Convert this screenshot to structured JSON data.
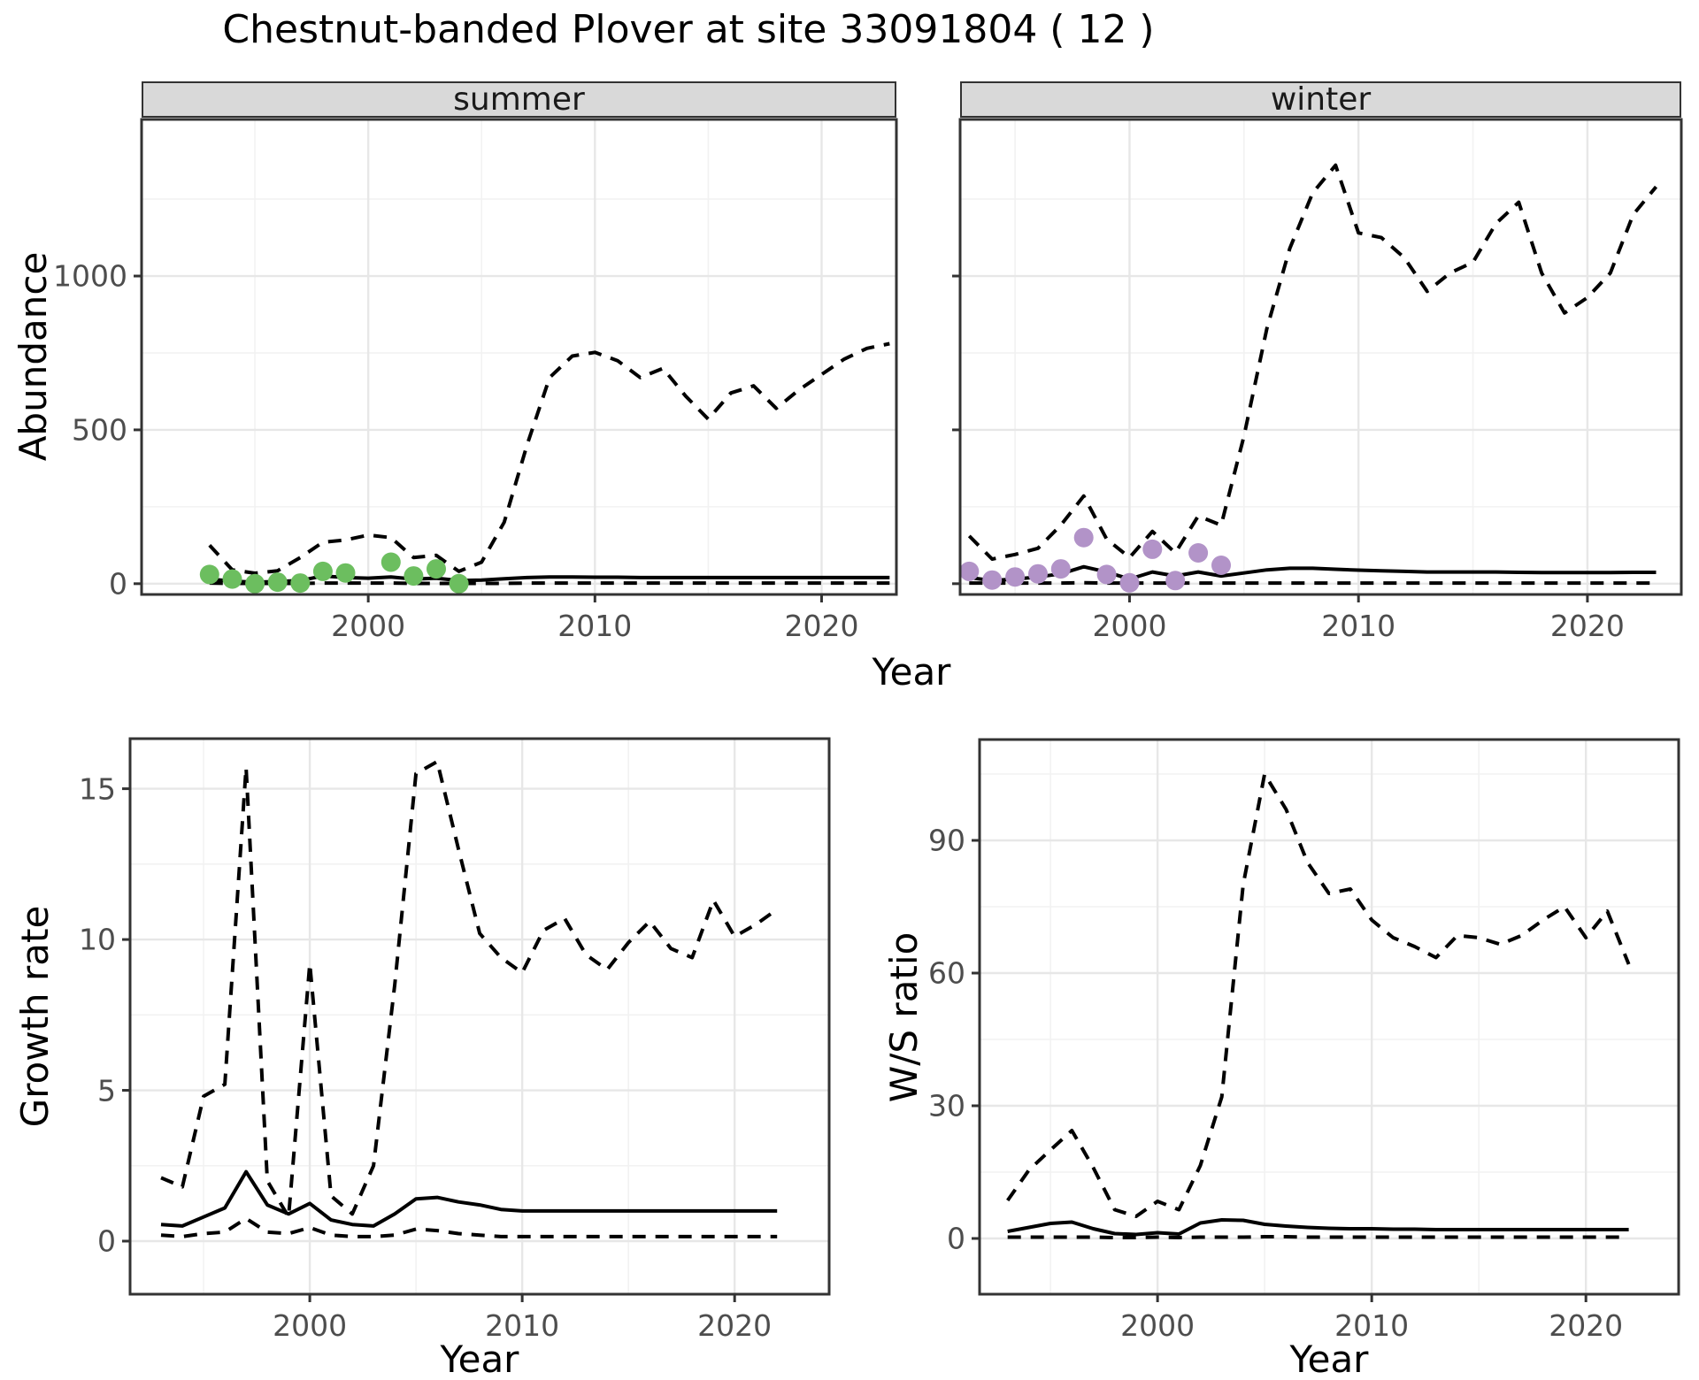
{
  "title": "Chestnut-banded Plover at site 33091804 ( 12 )",
  "top_xlabel": "Year",
  "colors": {
    "summer_point": "#6CBE5F",
    "winter_point": "#B293C8",
    "line": "#000000",
    "strip_bg": "#D9D9D9",
    "panel_border": "#333333",
    "grid_major": "#E7E7E7",
    "grid_minor": "#F2F2F2",
    "tick_label": "#4D4D4D"
  },
  "chart_data": [
    {
      "id": "abundance-summer",
      "type": "line",
      "facet_label": "summer",
      "xlabel": "Year",
      "ylabel": "Abundance",
      "x_ticks": [
        2000,
        2010,
        2020
      ],
      "x_minor": [
        1995,
        2005,
        2015
      ],
      "y_ticks": [
        0,
        500,
        1000
      ],
      "y_minor": [
        250,
        750,
        1250
      ],
      "xlim": [
        1990.0,
        2023.3
      ],
      "ylim": [
        -35,
        1509
      ],
      "grid": true,
      "legend": "none",
      "years": [
        1993,
        1994,
        1995,
        1996,
        1997,
        1998,
        1999,
        2000,
        2001,
        2002,
        2003,
        2004,
        2005,
        2006,
        2007,
        2008,
        2009,
        2010,
        2011,
        2012,
        2013,
        2014,
        2015,
        2016,
        2017,
        2018,
        2019,
        2020,
        2021,
        2022,
        2023
      ],
      "series": [
        {
          "name": "upper_ci",
          "style": "dashed",
          "values": [
            125,
            45,
            34,
            42,
            85,
            135,
            142,
            158,
            150,
            85,
            92,
            40,
            70,
            200,
            450,
            670,
            740,
            752,
            725,
            670,
            700,
            610,
            535,
            620,
            643,
            570,
            630,
            680,
            730,
            765,
            780
          ]
        },
        {
          "name": "mean",
          "style": "solid",
          "values": [
            15,
            8,
            5,
            7,
            10,
            25,
            20,
            18,
            22,
            15,
            18,
            10,
            12,
            16,
            20,
            22,
            22,
            21,
            21,
            20,
            20,
            20,
            20,
            20,
            20,
            20,
            20,
            20,
            20,
            20,
            20
          ]
        },
        {
          "name": "lower_ci",
          "style": "dashed",
          "values": [
            2,
            1,
            1,
            1,
            1,
            2,
            2,
            2,
            2,
            1,
            1,
            1,
            1,
            1,
            2,
            2,
            2,
            2,
            2,
            2,
            2,
            2,
            2,
            2,
            2,
            2,
            2,
            2,
            2,
            2,
            2
          ]
        }
      ],
      "points": {
        "name": "observed-count",
        "color_key": "summer_point",
        "years": [
          1993,
          1994,
          1995,
          1996,
          1997,
          1998,
          1999,
          2001,
          2002,
          2003,
          2004
        ],
        "values": [
          30,
          15,
          0,
          5,
          2,
          40,
          35,
          70,
          25,
          48,
          0
        ]
      }
    },
    {
      "id": "abundance-winter",
      "type": "line",
      "facet_label": "winter",
      "xlabel": "Year",
      "ylabel": "",
      "x_ticks": [
        2000,
        2010,
        2020
      ],
      "x_minor": [
        1995,
        2005,
        2015
      ],
      "y_ticks": [
        0,
        500,
        1000
      ],
      "y_minor": [
        250,
        750,
        1250
      ],
      "xlim": [
        1992.6,
        2024.1
      ],
      "ylim": [
        -35,
        1509
      ],
      "grid": true,
      "legend": "none",
      "years": [
        1993,
        1994,
        1995,
        1996,
        1997,
        1998,
        1999,
        2000,
        2001,
        2002,
        2003,
        2004,
        2005,
        2006,
        2007,
        2008,
        2009,
        2010,
        2011,
        2012,
        2013,
        2014,
        2015,
        2016,
        2017,
        2018,
        2019,
        2020,
        2021,
        2022,
        2023
      ],
      "series": [
        {
          "name": "upper_ci",
          "style": "dashed",
          "values": [
            155,
            80,
            95,
            115,
            190,
            285,
            145,
            85,
            170,
            100,
            220,
            190,
            480,
            830,
            1090,
            1270,
            1360,
            1140,
            1125,
            1060,
            950,
            1010,
            1045,
            1170,
            1240,
            1010,
            880,
            930,
            1010,
            1200,
            1290
          ]
        },
        {
          "name": "mean",
          "style": "solid",
          "values": [
            20,
            10,
            15,
            22,
            32,
            55,
            38,
            15,
            38,
            25,
            38,
            25,
            35,
            45,
            50,
            50,
            47,
            44,
            42,
            40,
            38,
            38,
            38,
            38,
            37,
            36,
            36,
            36,
            36,
            37,
            37
          ]
        },
        {
          "name": "lower_ci",
          "style": "dashed",
          "values": [
            2,
            2,
            2,
            2,
            2,
            3,
            2,
            2,
            2,
            2,
            2,
            2,
            2,
            2,
            2,
            2,
            2,
            2,
            2,
            2,
            2,
            2,
            2,
            2,
            2,
            2,
            2,
            2,
            2,
            2,
            2
          ]
        }
      ],
      "points": {
        "name": "observed-count",
        "color_key": "winter_point",
        "years": [
          1993,
          1994,
          1995,
          1996,
          1997,
          1998,
          1999,
          2000,
          2001,
          2002,
          2003,
          2004
        ],
        "values": [
          40,
          12,
          22,
          32,
          48,
          150,
          30,
          3,
          112,
          10,
          100,
          60
        ]
      }
    },
    {
      "id": "growth-rate",
      "type": "line",
      "facet_label": null,
      "xlabel": "Year",
      "ylabel": "Growth rate",
      "x_ticks": [
        2000,
        2010,
        2020
      ],
      "x_minor": [
        1995,
        2005,
        2015
      ],
      "y_ticks": [
        0,
        5,
        10,
        15
      ],
      "y_minor": [
        2.5,
        7.5,
        12.5
      ],
      "xlim": [
        1991.54,
        2024.45
      ],
      "ylim": [
        -1.76,
        16.66
      ],
      "grid": true,
      "legend": "none",
      "years": [
        1993,
        1994,
        1995,
        1996,
        1997,
        1998,
        1999,
        2000,
        2001,
        2002,
        2003,
        2004,
        2005,
        2006,
        2007,
        2008,
        2009,
        2010,
        2011,
        2012,
        2013,
        2014,
        2015,
        2016,
        2017,
        2018,
        2019,
        2020,
        2021,
        2022
      ],
      "series": [
        {
          "name": "upper_ci",
          "style": "dashed",
          "values": [
            2.1,
            1.8,
            4.8,
            5.2,
            15.7,
            2.0,
            0.8,
            9.2,
            1.5,
            0.9,
            2.5,
            8.5,
            15.5,
            15.9,
            13.0,
            10.2,
            9.4,
            8.9,
            10.3,
            10.7,
            9.5,
            9.0,
            9.9,
            10.6,
            9.7,
            9.4,
            11.3,
            10.1,
            10.5,
            11.0
          ]
        },
        {
          "name": "mean",
          "style": "solid",
          "values": [
            0.55,
            0.5,
            0.8,
            1.1,
            2.3,
            1.2,
            0.9,
            1.25,
            0.7,
            0.55,
            0.5,
            0.9,
            1.4,
            1.45,
            1.3,
            1.2,
            1.05,
            1.0,
            1.0,
            1.0,
            1.0,
            1.0,
            1.0,
            1.0,
            1.0,
            1.0,
            1.0,
            1.0,
            1.0,
            1.0
          ]
        },
        {
          "name": "lower_ci",
          "style": "dashed",
          "values": [
            0.2,
            0.15,
            0.25,
            0.3,
            0.75,
            0.3,
            0.25,
            0.45,
            0.2,
            0.15,
            0.15,
            0.2,
            0.4,
            0.35,
            0.25,
            0.2,
            0.15,
            0.15,
            0.15,
            0.15,
            0.15,
            0.15,
            0.15,
            0.15,
            0.15,
            0.15,
            0.15,
            0.15,
            0.15,
            0.15
          ]
        }
      ],
      "points": null
    },
    {
      "id": "ws-ratio",
      "type": "line",
      "facet_label": null,
      "xlabel": "Year",
      "ylabel": "W/S ratio",
      "x_ticks": [
        2000,
        2010,
        2020
      ],
      "x_minor": [
        1995,
        2005,
        2015
      ],
      "y_ticks": [
        0,
        30,
        60,
        90
      ],
      "y_minor": [
        15,
        45,
        75,
        105
      ],
      "xlim": [
        1991.69,
        2024.33
      ],
      "ylim": [
        -12.6,
        112.8
      ],
      "grid": true,
      "legend": "none",
      "years": [
        1993,
        1994,
        1995,
        1996,
        1997,
        1998,
        1999,
        2000,
        2001,
        2002,
        2003,
        2004,
        2005,
        2006,
        2007,
        2008,
        2009,
        2010,
        2011,
        2012,
        2013,
        2014,
        2015,
        2016,
        2017,
        2018,
        2019,
        2020,
        2021,
        2022
      ],
      "series": [
        {
          "name": "upper_ci",
          "style": "dashed",
          "values": [
            8.6,
            15.5,
            20,
            24.4,
            16,
            6.5,
            5,
            8.4,
            6.5,
            16.5,
            32,
            80,
            105,
            97,
            85,
            78,
            79,
            72,
            68,
            66,
            63.5,
            68.5,
            68,
            66.5,
            68.5,
            72,
            75,
            68,
            74,
            62
          ]
        },
        {
          "name": "mean",
          "style": "solid",
          "values": [
            1.6,
            2.5,
            3.4,
            3.7,
            2.2,
            1.1,
            0.9,
            1.3,
            1.0,
            3.5,
            4.2,
            4.1,
            3.2,
            2.8,
            2.5,
            2.3,
            2.2,
            2.2,
            2.1,
            2.1,
            2.0,
            2.0,
            2.0,
            2.0,
            2.0,
            2.0,
            2.0,
            2.0,
            2.0,
            2.0
          ]
        },
        {
          "name": "lower_ci",
          "style": "dashed",
          "values": [
            0.3,
            0.3,
            0.3,
            0.3,
            0.3,
            0.2,
            0.2,
            0.3,
            0.2,
            0.3,
            0.3,
            0.3,
            0.4,
            0.4,
            0.3,
            0.3,
            0.3,
            0.3,
            0.3,
            0.3,
            0.3,
            0.3,
            0.3,
            0.3,
            0.3,
            0.3,
            0.3,
            0.3,
            0.3,
            0.3
          ]
        }
      ],
      "points": null
    }
  ]
}
